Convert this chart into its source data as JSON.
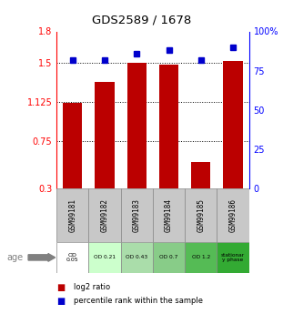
{
  "title": "GDS2589 / 1678",
  "samples": [
    "GSM99181",
    "GSM99182",
    "GSM99183",
    "GSM99184",
    "GSM99185",
    "GSM99186"
  ],
  "log2_ratio": [
    1.12,
    1.32,
    1.5,
    1.48,
    0.55,
    1.52
  ],
  "percentile_rank": [
    82,
    82,
    86,
    88,
    82,
    90
  ],
  "ylim_left": [
    0.3,
    1.8
  ],
  "ylim_right": [
    0,
    100
  ],
  "yticks_left": [
    0.3,
    0.75,
    1.125,
    1.5,
    1.8
  ],
  "yticks_right": [
    0,
    25,
    50,
    75,
    100
  ],
  "ytick_labels_left": [
    "0.3",
    "0.75",
    "1.125",
    "1.5",
    "1.8"
  ],
  "ytick_labels_right": [
    "0",
    "25",
    "50",
    "75",
    "100%"
  ],
  "hlines": [
    0.75,
    1.125,
    1.5
  ],
  "bar_color": "#bb0000",
  "dot_color": "#0000cc",
  "sample_bg_color": "#c8c8c8",
  "age_labels": [
    "OD\n0.05",
    "OD 0.21",
    "OD 0.43",
    "OD 0.7",
    "OD 1.2",
    "stationar\ny phase"
  ],
  "age_bg_colors": [
    "#ffffff",
    "#ccffcc",
    "#aaddaa",
    "#88cc88",
    "#55bb55",
    "#33aa33"
  ],
  "age_row_label": "age",
  "legend_entries": [
    "log2 ratio",
    "percentile rank within the sample"
  ]
}
